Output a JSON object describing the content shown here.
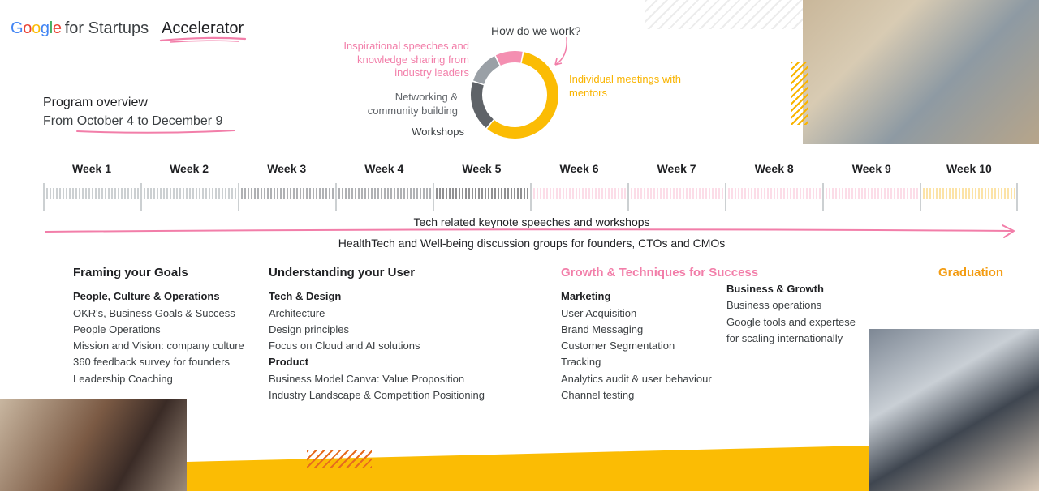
{
  "header": {
    "brand_letters": [
      {
        "ch": "G",
        "color": "#4285F4"
      },
      {
        "ch": "o",
        "color": "#EA4335"
      },
      {
        "ch": "o",
        "color": "#FBBC05"
      },
      {
        "ch": "g",
        "color": "#4285F4"
      },
      {
        "ch": "l",
        "color": "#34A853"
      },
      {
        "ch": "e",
        "color": "#EA4335"
      }
    ],
    "brand_suffix": "for Startups",
    "program": "Accelerator"
  },
  "overview": {
    "title": "Program overview",
    "dates": "From October 4 to December 9"
  },
  "donut": {
    "question": "How do we work?",
    "segments": [
      {
        "label": "Individual meetings with mentors",
        "value": 55,
        "color": "#FBBC04"
      },
      {
        "label": "Workshops",
        "value": 18,
        "color": "#5f6368"
      },
      {
        "label": "Networking & community building",
        "value": 12,
        "color": "#9aa0a6"
      },
      {
        "label": "Inspirational speeches and knowledge sharing from industry leaders",
        "value": 10,
        "color": "#F48FB1"
      }
    ],
    "labels": {
      "inspirational": "Inspirational speeches and knowledge sharing from industry leaders",
      "networking": "Networking & community building",
      "workshops": "Workshops",
      "individual": "Individual meetings with mentors"
    }
  },
  "timeline": {
    "weeks": [
      "Week 1",
      "Week 2",
      "Week 3",
      "Week 4",
      "Week 5",
      "Week 6",
      "Week 7",
      "Week 8",
      "Week 9",
      "Week 10"
    ],
    "week_colors": [
      "#9aa0a6",
      "#9aa0a6",
      "#5f6368",
      "#5f6368",
      "#202124",
      "#f8bbd0",
      "#f8bbd0",
      "#f8bbd0",
      "#f8bbd0",
      "#f9c74f"
    ],
    "keynote": "Tech related keynote speeches and workshops",
    "healthtech": "HealthTech and Well-being discussion groups for founders, CTOs and CMOs"
  },
  "columns": {
    "framing": {
      "title": "Framing your Goals",
      "sub": "People, Culture & Operations",
      "items": [
        "OKR's, Business Goals & Success",
        "People Operations",
        "Mission and Vision: company culture",
        "360 feedback survey for founders",
        "Leadership Coaching"
      ]
    },
    "understanding": {
      "title": "Understanding your User",
      "sub1": "Tech & Design",
      "items1": [
        "Architecture",
        "Design principles",
        "Focus on Cloud and AI solutions"
      ],
      "sub2": "Product",
      "items2": [
        "Business Model Canva: Value Proposition",
        "Industry Landscape & Competition Positioning"
      ]
    },
    "growth": {
      "title": "Growth & Techniques for Success",
      "sub": "Marketing",
      "items": [
        "User Acquisition",
        "Brand Messaging",
        "Customer Segmentation",
        "Tracking",
        "Analytics audit & user behaviour",
        "Channel testing"
      ]
    },
    "business": {
      "sub": "Business & Growth",
      "items": [
        "Business operations",
        "Google tools and expertese",
        "for scaling internationally"
      ]
    },
    "graduation": {
      "title": "Graduation"
    }
  },
  "colors": {
    "accent_pink": "#f27ea9",
    "accent_yellow": "#FBBC04",
    "accent_orange": "#f39c12"
  }
}
